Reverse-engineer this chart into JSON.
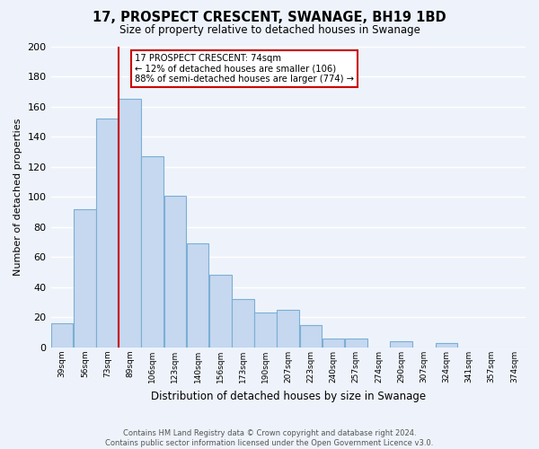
{
  "title": "17, PROSPECT CRESCENT, SWANAGE, BH19 1BD",
  "subtitle": "Size of property relative to detached houses in Swanage",
  "xlabel": "Distribution of detached houses by size in Swanage",
  "ylabel": "Number of detached properties",
  "bin_labels": [
    "39sqm",
    "56sqm",
    "73sqm",
    "89sqm",
    "106sqm",
    "123sqm",
    "140sqm",
    "156sqm",
    "173sqm",
    "190sqm",
    "207sqm",
    "223sqm",
    "240sqm",
    "257sqm",
    "274sqm",
    "290sqm",
    "307sqm",
    "324sqm",
    "341sqm",
    "357sqm",
    "374sqm"
  ],
  "values": [
    16,
    92,
    152,
    165,
    127,
    101,
    69,
    48,
    32,
    23,
    25,
    15,
    6,
    6,
    0,
    4,
    0,
    3,
    0,
    0,
    0
  ],
  "bar_color": "#c5d8f0",
  "bar_edge_color": "#7bafd4",
  "property_bar_index": 2,
  "property_line_color": "#cc0000",
  "annotation_text": "17 PROSPECT CRESCENT: 74sqm\n← 12% of detached houses are smaller (106)\n88% of semi-detached houses are larger (774) →",
  "annotation_box_color": "#ffffff",
  "annotation_box_edge": "#cc0000",
  "ylim": [
    0,
    200
  ],
  "yticks": [
    0,
    20,
    40,
    60,
    80,
    100,
    120,
    140,
    160,
    180,
    200
  ],
  "footer_line1": "Contains HM Land Registry data © Crown copyright and database right 2024.",
  "footer_line2": "Contains public sector information licensed under the Open Government Licence v3.0.",
  "bg_color": "#eef3fb",
  "plot_bg_color": "#eef3fb",
  "grid_color": "#ffffff"
}
